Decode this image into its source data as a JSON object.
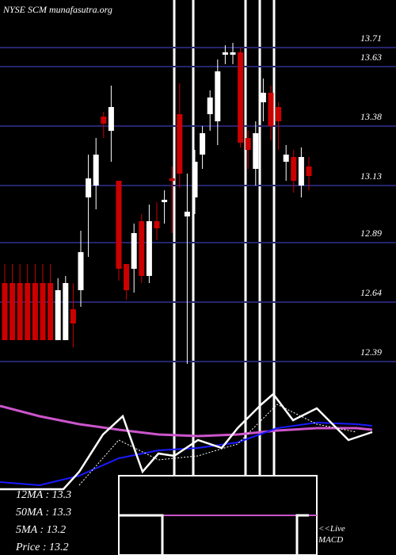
{
  "chart_data": [
    {
      "type": "candlestick",
      "title": "NYSE SCM munafasutra.org",
      "up_color": "#ffffff",
      "down_color": "#cc0000",
      "grid_color": "#25256e",
      "ylim": [
        12.35,
        13.91
      ],
      "yticks": [
        13.71,
        13.63,
        13.38,
        13.13,
        12.89,
        12.64,
        12.39
      ],
      "open": [
        12.72,
        12.72,
        12.72,
        12.72,
        12.72,
        12.72,
        12.72,
        12.48,
        12.48,
        12.61,
        12.69,
        13.08,
        13.13,
        13.42,
        13.36,
        13.15,
        12.8,
        12.78,
        12.98,
        12.75,
        12.98,
        13.06,
        13.16,
        13.43,
        13.0,
        13.08,
        13.26,
        13.43,
        13.4,
        13.68,
        13.68,
        13.69,
        13.33,
        13.2,
        13.48,
        13.52,
        13.46,
        13.23,
        13.25,
        13.13,
        13.21
      ],
      "high": [
        12.8,
        12.8,
        12.8,
        12.8,
        12.8,
        12.8,
        12.8,
        12.74,
        12.75,
        12.72,
        12.94,
        13.26,
        13.33,
        13.44,
        13.55,
        13.15,
        12.8,
        12.97,
        13.01,
        13.05,
        13.06,
        13.11,
        13.21,
        13.56,
        13.18,
        13.28,
        13.38,
        13.53,
        13.66,
        13.72,
        13.73,
        13.71,
        13.36,
        13.4,
        13.58,
        13.55,
        13.48,
        13.3,
        13.28,
        13.29,
        13.25
      ],
      "low": [
        12.48,
        12.48,
        12.48,
        12.48,
        12.48,
        12.48,
        12.48,
        12.48,
        12.48,
        12.45,
        12.62,
        12.83,
        13.03,
        13.33,
        13.23,
        12.73,
        12.65,
        12.68,
        12.72,
        12.72,
        12.9,
        12.97,
        12.93,
        13.12,
        12.38,
        13.01,
        13.2,
        13.36,
        13.3,
        13.64,
        13.64,
        13.29,
        13.2,
        13.13,
        13.4,
        13.32,
        13.28,
        13.15,
        13.1,
        13.08,
        13.11
      ],
      "close": [
        12.48,
        12.48,
        12.48,
        12.48,
        12.48,
        12.48,
        12.48,
        12.69,
        12.72,
        12.55,
        12.85,
        13.16,
        13.26,
        13.39,
        13.46,
        12.78,
        12.69,
        12.93,
        12.75,
        12.98,
        12.95,
        13.07,
        13.15,
        13.18,
        13.02,
        13.23,
        13.35,
        13.5,
        13.61,
        13.69,
        13.69,
        13.31,
        13.28,
        13.35,
        13.52,
        13.38,
        13.4,
        13.26,
        13.15,
        13.25,
        13.17
      ]
    },
    {
      "type": "line",
      "xlim": [
        0,
        500
      ],
      "ylim": [
        0,
        130
      ],
      "texts": [
        "12MA : 13.3",
        "50MA : 13.3",
        "5MA : 13.2",
        "Price   : 13.2",
        "<<Live",
        "MACD"
      ],
      "series": [
        {
          "color": "#cc55cc",
          "width": 3,
          "dashed": false,
          "x": [
            0,
            50,
            100,
            150,
            200,
            250,
            300,
            350,
            400,
            450,
            470
          ],
          "values": [
            108,
            95,
            85,
            78,
            72,
            70,
            72,
            77,
            80,
            80,
            78
          ]
        },
        {
          "color": "#1a1aff",
          "width": 2,
          "dashed": false,
          "x": [
            0,
            50,
            100,
            150,
            200,
            250,
            300,
            350,
            400,
            450,
            470
          ],
          "values": [
            12,
            8,
            20,
            42,
            52,
            55,
            62,
            80,
            87,
            85,
            83
          ]
        },
        {
          "color": "#ffffff",
          "width": 1,
          "dashed": true,
          "x": [
            100,
            150,
            200,
            250,
            300,
            350,
            400,
            450
          ],
          "values": [
            8,
            65,
            40,
            45,
            60,
            110,
            85,
            75
          ]
        },
        {
          "color": "#ffffff",
          "width": 2.5,
          "dashed": false,
          "x": [
            0,
            50,
            80,
            100,
            130,
            155,
            180,
            200,
            220,
            250,
            280,
            300,
            330,
            345,
            370,
            400,
            440,
            470
          ],
          "values": [
            3,
            3,
            3,
            25,
            72,
            95,
            25,
            48,
            45,
            65,
            55,
            80,
            110,
            123,
            90,
            105,
            65,
            75
          ]
        }
      ]
    }
  ]
}
